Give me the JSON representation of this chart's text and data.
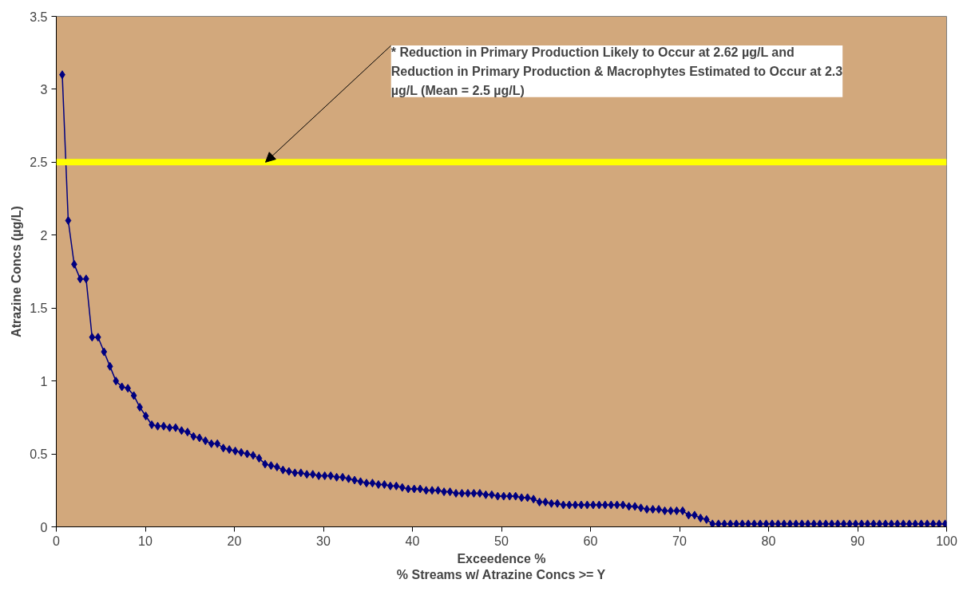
{
  "chart_data": {
    "type": "line",
    "xlabel": "Exceedence %\n% Streams w/ Atrazine Concs >= Y",
    "ylabel": "Atrazine Concs (µg/L)",
    "x": [
      0.67,
      1.34,
      2.01,
      2.68,
      3.35,
      4.02,
      4.69,
      5.36,
      6.03,
      6.7,
      7.37,
      8.04,
      8.71,
      9.38,
      10.05,
      10.72,
      11.39,
      12.06,
      12.73,
      13.4,
      14.07,
      14.74,
      15.41,
      16.08,
      16.75,
      17.42,
      18.09,
      18.76,
      19.43,
      20.1,
      20.77,
      21.44,
      22.11,
      22.78,
      23.45,
      24.12,
      24.79,
      25.46,
      26.13,
      26.8,
      27.47,
      28.14,
      28.81,
      29.48,
      30.15,
      30.82,
      31.49,
      32.16,
      32.83,
      33.5,
      34.17,
      34.84,
      35.51,
      36.18,
      36.85,
      37.52,
      38.19,
      38.86,
      39.53,
      40.2,
      40.87,
      41.54,
      42.21,
      42.88,
      43.55,
      44.22,
      44.89,
      45.56,
      46.23,
      46.9,
      47.57,
      48.24,
      48.91,
      49.58,
      50.25,
      50.92,
      51.59,
      52.26,
      52.93,
      53.6,
      54.27,
      54.94,
      55.61,
      56.28,
      56.95,
      57.62,
      58.29,
      58.96,
      59.63,
      60.3,
      60.97,
      61.64,
      62.31,
      62.98,
      63.65,
      64.32,
      64.99,
      65.66,
      66.33,
      67,
      67.67,
      68.34,
      69.01,
      69.68,
      70.35,
      71.02,
      71.69,
      72.36,
      73.03,
      73.7,
      74.37,
      75.04,
      75.71,
      76.38,
      77.05,
      77.72,
      78.39,
      79.06,
      79.73,
      80.4,
      81.07,
      81.74,
      82.41,
      83.08,
      83.75,
      84.42,
      85.09,
      85.76,
      86.43,
      87.1,
      87.77,
      88.44,
      89.11,
      89.78,
      90.45,
      91.12,
      91.79,
      92.46,
      93.13,
      93.8,
      94.47,
      95.14,
      95.81,
      96.48,
      97.15,
      97.82,
      98.49,
      99.16,
      99.83
    ],
    "series": [
      {
        "color": "#000080",
        "values": [
          3.1,
          2.1,
          1.8,
          1.7,
          1.7,
          1.3,
          1.3,
          1.2,
          1.1,
          1.0,
          0.96,
          0.95,
          0.9,
          0.82,
          0.76,
          0.7,
          0.69,
          0.69,
          0.68,
          0.68,
          0.66,
          0.65,
          0.62,
          0.61,
          0.59,
          0.57,
          0.57,
          0.54,
          0.53,
          0.52,
          0.51,
          0.5,
          0.49,
          0.47,
          0.43,
          0.42,
          0.41,
          0.39,
          0.38,
          0.37,
          0.37,
          0.36,
          0.36,
          0.35,
          0.35,
          0.35,
          0.34,
          0.34,
          0.33,
          0.32,
          0.31,
          0.3,
          0.3,
          0.29,
          0.29,
          0.28,
          0.28,
          0.27,
          0.26,
          0.26,
          0.26,
          0.25,
          0.25,
          0.25,
          0.24,
          0.24,
          0.23,
          0.23,
          0.23,
          0.23,
          0.23,
          0.22,
          0.22,
          0.21,
          0.21,
          0.21,
          0.21,
          0.2,
          0.2,
          0.19,
          0.17,
          0.17,
          0.16,
          0.16,
          0.15,
          0.15,
          0.15,
          0.15,
          0.15,
          0.15,
          0.15,
          0.15,
          0.15,
          0.15,
          0.15,
          0.14,
          0.14,
          0.13,
          0.12,
          0.12,
          0.12,
          0.11,
          0.11,
          0.11,
          0.11,
          0.08,
          0.08,
          0.06,
          0.05,
          0.02,
          0.02,
          0.02,
          0.02,
          0.02,
          0.02,
          0.02,
          0.02,
          0.02,
          0.02,
          0.02,
          0.02,
          0.02,
          0.02,
          0.02,
          0.02,
          0.02,
          0.02,
          0.02,
          0.02,
          0.02,
          0.02,
          0.02,
          0.02,
          0.02,
          0.02,
          0.02,
          0.02,
          0.02,
          0.02,
          0.02,
          0.02,
          0.02,
          0.02,
          0.02,
          0.02,
          0.02,
          0.02,
          0.02,
          0.02
        ]
      }
    ],
    "xlim": [
      0,
      100
    ],
    "xticks": [
      0,
      10,
      20,
      30,
      40,
      50,
      60,
      70,
      80,
      90,
      100
    ],
    "ylim": [
      0,
      3.5
    ],
    "yticks": [
      0,
      0.5,
      1,
      1.5,
      2,
      2.5,
      3,
      3.5
    ],
    "ref_lines": [
      {
        "axis": "y",
        "value": 2.5,
        "color": "#ffff00"
      }
    ],
    "annotations": [
      {
        "text": "* Reduction in Primary Production Likely to Occur at 2.62  µg/L and\nReduction in Primary Production & Macrophytes Estimated to Occur at 2.3\nµg/L (Mean = 2.5  µg/L)",
        "x": 23.5,
        "y": 2.5
      }
    ],
    "marker": "diamond",
    "line_style": "solid",
    "grid": false
  }
}
